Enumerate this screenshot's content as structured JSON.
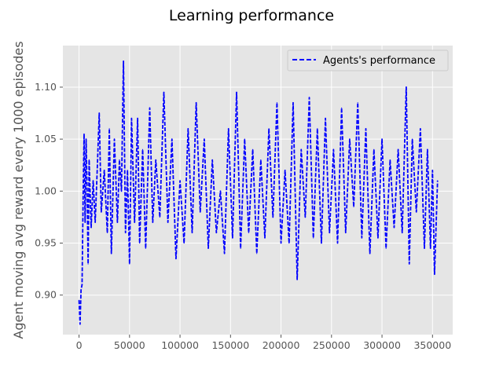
{
  "chart_data": {
    "type": "line",
    "title": "Learning performance",
    "xlabel": "",
    "ylabel": "Agent moving avg reward every 1000 episodes",
    "xlim": [
      -16000,
      370000
    ],
    "ylim": [
      0.862,
      1.14
    ],
    "xticks": [
      0,
      50000,
      100000,
      150000,
      200000,
      250000,
      300000,
      350000
    ],
    "xtick_labels": [
      "0",
      "50000",
      "100000",
      "150000",
      "200000",
      "250000",
      "300000",
      "350000"
    ],
    "yticks": [
      0.9,
      0.95,
      1.0,
      1.05,
      1.1
    ],
    "ytick_labels": [
      "0.90",
      "0.95",
      "1.00",
      "1.05",
      "1.10"
    ],
    "grid": true,
    "legend_position": "top-right",
    "style": "ggplot",
    "colors": {
      "background": "#e5e5e5",
      "grid": "#ffffff",
      "series": "#0000ff"
    },
    "series": [
      {
        "name": "Agents's performance",
        "line_style": "dashed",
        "color": "#0000ff",
        "x_range": [
          0,
          355000
        ],
        "summary": {
          "start_value": 0.89,
          "min_value": 0.872,
          "max_value": 1.125,
          "typical_low": 0.95,
          "typical_high": 1.05
        },
        "points": [
          [
            0,
            0.895
          ],
          [
            1000,
            0.872
          ],
          [
            2000,
            0.905
          ],
          [
            3000,
            0.91
          ],
          [
            4000,
            0.99
          ],
          [
            5000,
            1.055
          ],
          [
            6000,
            0.97
          ],
          [
            7000,
            1.05
          ],
          [
            8000,
            1.0
          ],
          [
            9000,
            0.93
          ],
          [
            10000,
            1.03
          ],
          [
            12000,
            0.965
          ],
          [
            14000,
            1.01
          ],
          [
            16000,
            0.97
          ],
          [
            18000,
            1.02
          ],
          [
            20000,
            1.075
          ],
          [
            22000,
            0.98
          ],
          [
            25000,
            1.02
          ],
          [
            28000,
            0.96
          ],
          [
            30000,
            1.06
          ],
          [
            32000,
            0.94
          ],
          [
            35000,
            1.05
          ],
          [
            38000,
            0.97
          ],
          [
            40000,
            1.03
          ],
          [
            42000,
            1.0
          ],
          [
            44000,
            1.125
          ],
          [
            46000,
            0.96
          ],
          [
            48000,
            1.02
          ],
          [
            50000,
            0.93
          ],
          [
            52000,
            1.07
          ],
          [
            55000,
            0.97
          ],
          [
            58000,
            1.07
          ],
          [
            60000,
            0.95
          ],
          [
            63000,
            1.04
          ],
          [
            66000,
            0.945
          ],
          [
            70000,
            1.08
          ],
          [
            73000,
            0.97
          ],
          [
            76000,
            1.03
          ],
          [
            80000,
            0.975
          ],
          [
            84000,
            1.095
          ],
          [
            88000,
            0.97
          ],
          [
            92000,
            1.05
          ],
          [
            96000,
            0.935
          ],
          [
            100000,
            1.01
          ],
          [
            104000,
            0.95
          ],
          [
            108000,
            1.06
          ],
          [
            112000,
            0.96
          ],
          [
            116000,
            1.085
          ],
          [
            120000,
            0.98
          ],
          [
            124000,
            1.05
          ],
          [
            128000,
            0.945
          ],
          [
            132000,
            1.03
          ],
          [
            136000,
            0.96
          ],
          [
            140000,
            1.0
          ],
          [
            144000,
            0.94
          ],
          [
            148000,
            1.06
          ],
          [
            152000,
            0.955
          ],
          [
            156000,
            1.095
          ],
          [
            160000,
            0.945
          ],
          [
            164000,
            1.05
          ],
          [
            168000,
            0.96
          ],
          [
            172000,
            1.04
          ],
          [
            176000,
            0.94
          ],
          [
            180000,
            1.03
          ],
          [
            184000,
            0.955
          ],
          [
            188000,
            1.06
          ],
          [
            192000,
            0.975
          ],
          [
            196000,
            1.085
          ],
          [
            200000,
            0.95
          ],
          [
            204000,
            1.02
          ],
          [
            208000,
            0.95
          ],
          [
            212000,
            1.085
          ],
          [
            216000,
            0.915
          ],
          [
            220000,
            1.04
          ],
          [
            224000,
            0.975
          ],
          [
            228000,
            1.09
          ],
          [
            232000,
            0.955
          ],
          [
            236000,
            1.06
          ],
          [
            240000,
            0.95
          ],
          [
            244000,
            1.07
          ],
          [
            248000,
            0.96
          ],
          [
            252000,
            1.04
          ],
          [
            256000,
            0.95
          ],
          [
            260000,
            1.08
          ],
          [
            264000,
            0.96
          ],
          [
            268000,
            1.05
          ],
          [
            272000,
            0.985
          ],
          [
            276000,
            1.085
          ],
          [
            280000,
            0.955
          ],
          [
            284000,
            1.06
          ],
          [
            288000,
            0.94
          ],
          [
            292000,
            1.04
          ],
          [
            296000,
            0.955
          ],
          [
            300000,
            1.05
          ],
          [
            304000,
            0.945
          ],
          [
            308000,
            1.03
          ],
          [
            312000,
            0.965
          ],
          [
            316000,
            1.04
          ],
          [
            320000,
            0.96
          ],
          [
            324000,
            1.1
          ],
          [
            327000,
            0.93
          ],
          [
            330000,
            1.05
          ],
          [
            334000,
            0.98
          ],
          [
            338000,
            1.06
          ],
          [
            342000,
            0.945
          ],
          [
            345000,
            1.04
          ],
          [
            348000,
            0.945
          ],
          [
            350000,
            1.02
          ],
          [
            352000,
            0.92
          ],
          [
            355000,
            1.01
          ]
        ]
      }
    ]
  }
}
